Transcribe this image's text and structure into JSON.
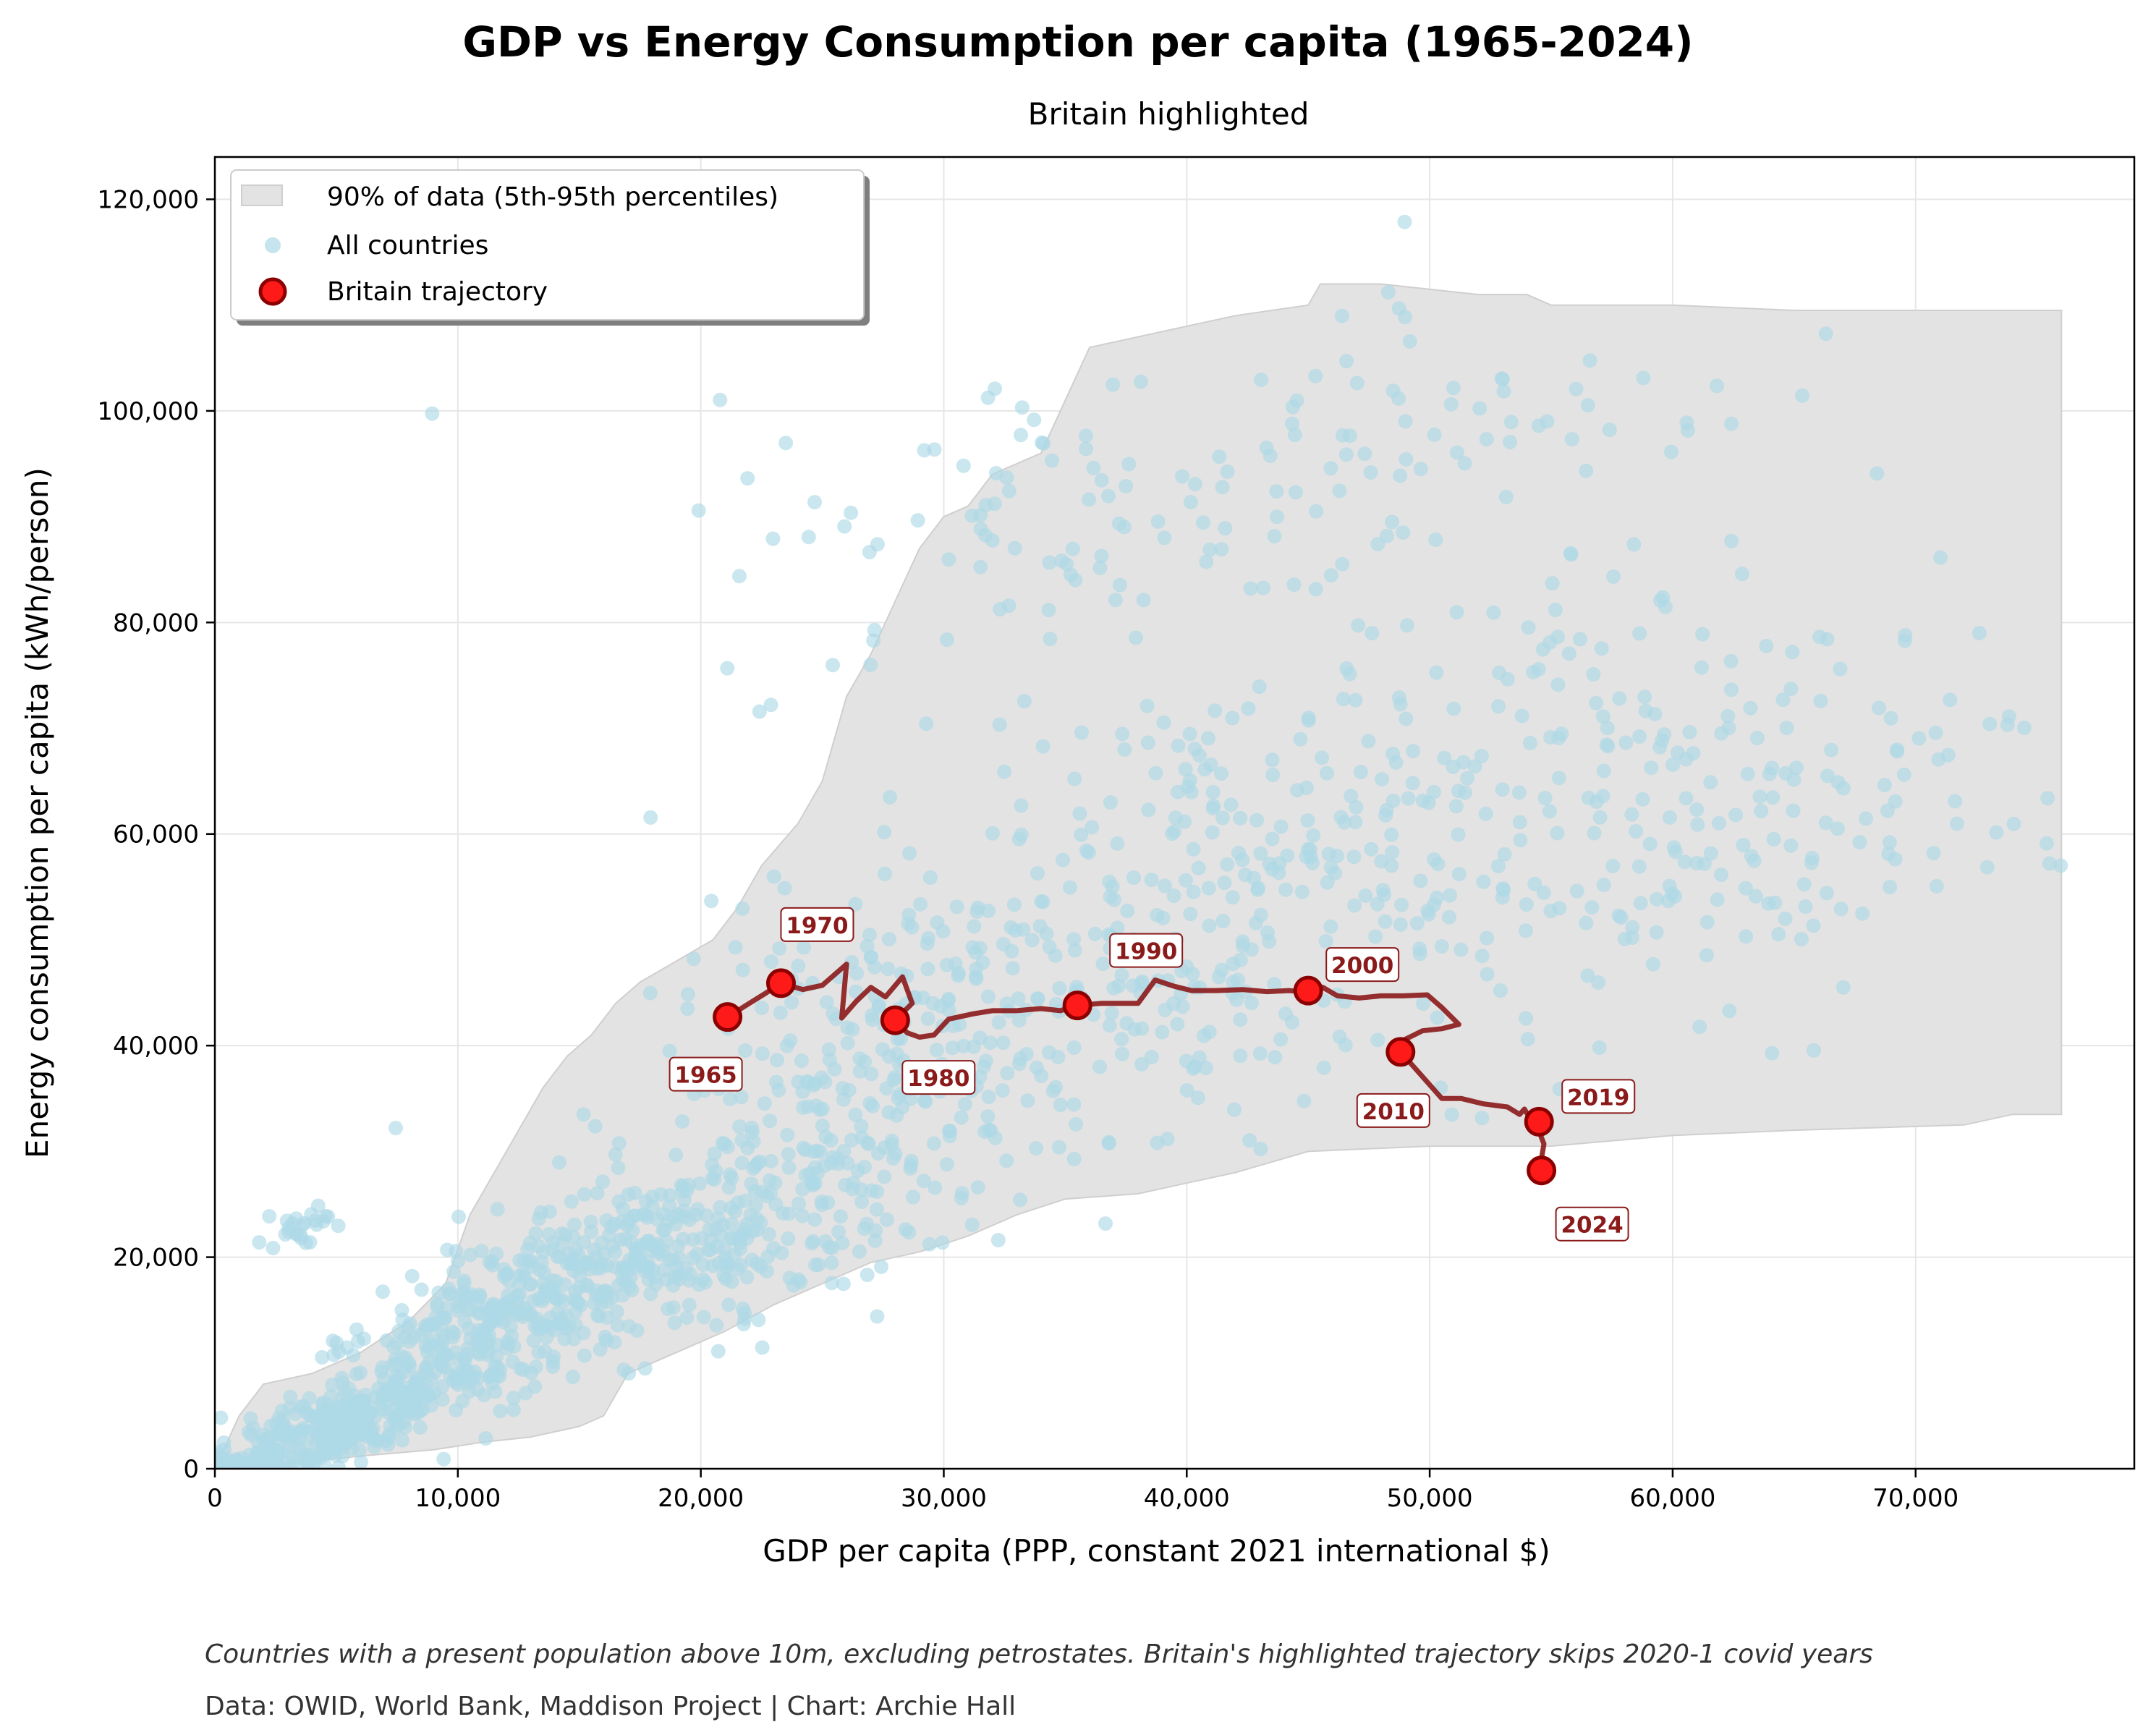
{
  "title": "GDP vs Energy Consumption per capita (1965-2024)",
  "subtitle": "Britain highlighted",
  "footnote": "Countries with a present population above 10m, excluding petrostates. Britain's highlighted trajectory skips 2020-1 covid years",
  "credit": "Data: OWID, World Bank, Maddison Project | Chart: Archie Hall",
  "colors": {
    "band_fill": "#e3e3e3",
    "band_edge": "#cfcfcf",
    "scatter": "#add8e6",
    "britain_line": "#8b1a1a",
    "britain_marker": "#ff1a1a",
    "britain_marker_edge": "#8b0000",
    "grid": "#e6e6e6"
  },
  "chart_data": {
    "type": "scatter",
    "xlabel": "GDP per capita (PPP, constant 2021 international $)",
    "ylabel": "Energy consumption per capita (kWh/person)",
    "xlim": [
      0,
      79000
    ],
    "ylim": [
      0,
      124000
    ],
    "x_ticks": [
      0,
      10000,
      20000,
      30000,
      40000,
      50000,
      60000,
      70000
    ],
    "x_tick_labels": [
      "0",
      "10,000",
      "20,000",
      "30,000",
      "40,000",
      "50,000",
      "60,000",
      "70,000"
    ],
    "y_ticks": [
      0,
      20000,
      40000,
      60000,
      80000,
      100000,
      120000
    ],
    "y_tick_labels": [
      "0",
      "20,000",
      "40,000",
      "60,000",
      "80,000",
      "100,000",
      "120,000"
    ],
    "grid": true,
    "legend_position": "top-left",
    "legend": [
      "90% of data (5th-95th percentiles)",
      "All countries",
      "Britain trajectory"
    ],
    "band_upper": [
      [
        0,
        0
      ],
      [
        1000,
        5000
      ],
      [
        2000,
        8000
      ],
      [
        4000,
        9000
      ],
      [
        6000,
        11000
      ],
      [
        8000,
        14000
      ],
      [
        9500,
        17500
      ],
      [
        10500,
        24000
      ],
      [
        11500,
        28000
      ],
      [
        12500,
        32000
      ],
      [
        13500,
        36000
      ],
      [
        14500,
        39000
      ],
      [
        15500,
        41000
      ],
      [
        16500,
        44000
      ],
      [
        17500,
        46000
      ],
      [
        19000,
        48000
      ],
      [
        20500,
        50000
      ],
      [
        21500,
        53000
      ],
      [
        22500,
        57000
      ],
      [
        24000,
        61000
      ],
      [
        25000,
        65000
      ],
      [
        26000,
        73000
      ],
      [
        27000,
        77000
      ],
      [
        28000,
        82000
      ],
      [
        29000,
        87000
      ],
      [
        30000,
        90000
      ],
      [
        31000,
        91000
      ],
      [
        32000,
        94000
      ],
      [
        33000,
        95000
      ],
      [
        34000,
        96000
      ],
      [
        35000,
        101000
      ],
      [
        36000,
        106000
      ],
      [
        38000,
        107000
      ],
      [
        40000,
        108000
      ],
      [
        42000,
        109000
      ],
      [
        45000,
        110000
      ],
      [
        45500,
        112000
      ],
      [
        48000,
        112000
      ],
      [
        52000,
        111000
      ],
      [
        54000,
        111000
      ],
      [
        55000,
        110000
      ],
      [
        60000,
        110000
      ],
      [
        65000,
        109500
      ],
      [
        70000,
        109500
      ],
      [
        76000,
        109500
      ]
    ],
    "band_lower": [
      [
        76000,
        33500
      ],
      [
        74000,
        33500
      ],
      [
        72000,
        32500
      ],
      [
        65000,
        32000
      ],
      [
        60000,
        31500
      ],
      [
        55000,
        30500
      ],
      [
        50000,
        30500
      ],
      [
        45000,
        30000
      ],
      [
        42000,
        28000
      ],
      [
        40000,
        27000
      ],
      [
        38000,
        26000
      ],
      [
        35000,
        25500
      ],
      [
        33000,
        24000
      ],
      [
        31000,
        22000
      ],
      [
        29000,
        20500
      ],
      [
        27000,
        19500
      ],
      [
        25000,
        17500
      ],
      [
        23000,
        15500
      ],
      [
        21000,
        13000
      ],
      [
        19000,
        11000
      ],
      [
        17000,
        9000
      ],
      [
        16000,
        5000
      ],
      [
        15000,
        4000
      ],
      [
        13000,
        3000
      ],
      [
        11000,
        2500
      ],
      [
        9000,
        1800
      ],
      [
        6000,
        1200
      ],
      [
        3000,
        500
      ],
      [
        1000,
        100
      ],
      [
        0,
        0
      ]
    ],
    "series": [
      {
        "name": "Britain trajectory",
        "x": [
          21100,
          22000,
          22700,
          23300,
          24200,
          25000,
          26000,
          25800,
          26400,
          27000,
          27600,
          28300,
          28700,
          28000,
          28500,
          29000,
          29600,
          30200,
          31200,
          32000,
          33000,
          34000,
          34800,
          35500,
          36500,
          37500,
          38000,
          38700,
          39500,
          40200,
          41200,
          42300,
          43300,
          44200,
          44800,
          45000,
          45600,
          46200,
          47100,
          48000,
          48900,
          49900,
          50500,
          51200,
          50500,
          49700,
          49000,
          48800,
          49500,
          50500,
          51300,
          52200,
          53200,
          53700,
          53900,
          54200,
          54400,
          54700,
          54600,
          54600
        ],
        "y": [
          42700,
          44000,
          45000,
          45900,
          45300,
          45700,
          47700,
          42600,
          44200,
          45500,
          44600,
          46500,
          44000,
          42400,
          41200,
          40800,
          41000,
          42500,
          43000,
          43300,
          43300,
          43500,
          43300,
          43800,
          44000,
          44000,
          44000,
          46200,
          45600,
          45200,
          45200,
          45300,
          45100,
          45200,
          45100,
          45700,
          45500,
          44700,
          44500,
          44700,
          44700,
          44800,
          43600,
          42000,
          41600,
          41400,
          40600,
          39400,
          37600,
          35000,
          35000,
          34500,
          34200,
          33500,
          34000,
          32800,
          32500,
          30700,
          29300,
          28200
        ],
        "labeled_points": [
          {
            "year": "1965",
            "x": 21100,
            "y": 42700
          },
          {
            "year": "1970",
            "x": 23300,
            "y": 45900
          },
          {
            "year": "1980",
            "x": 28000,
            "y": 42400
          },
          {
            "year": "1990",
            "x": 35500,
            "y": 43800
          },
          {
            "year": "2000",
            "x": 45000,
            "y": 45200
          },
          {
            "year": "2010",
            "x": 48800,
            "y": 39400
          },
          {
            "year": "2019",
            "x": 54500,
            "y": 32800
          },
          {
            "year": "2024",
            "x": 54600,
            "y": 28200
          }
        ]
      }
    ],
    "scatter_clusters": [
      {
        "cx": 5000,
        "cy": 4000,
        "sx": 3000,
        "sy": 3000,
        "slope": 0.9,
        "n": 320
      },
      {
        "cx": 12000,
        "cy": 14000,
        "sx": 4500,
        "sy": 6000,
        "slope": 1.0,
        "n": 360
      },
      {
        "cx": 20000,
        "cy": 22000,
        "sx": 5000,
        "sy": 8000,
        "slope": 0.8,
        "n": 320
      },
      {
        "cx": 30000,
        "cy": 40000,
        "sx": 6000,
        "sy": 13000,
        "slope": 0.4,
        "n": 280
      },
      {
        "cx": 42000,
        "cy": 55000,
        "sx": 8000,
        "sy": 18000,
        "slope": 0.3,
        "n": 260
      },
      {
        "cx": 55000,
        "cy": 62000,
        "sx": 8000,
        "sy": 20000,
        "slope": 0.0,
        "n": 180
      },
      {
        "cx": 36000,
        "cy": 90000,
        "sx": 8000,
        "sy": 12000,
        "slope": 0.2,
        "n": 100
      },
      {
        "cx": 52000,
        "cy": 100000,
        "sx": 6000,
        "sy": 12000,
        "slope": 0.0,
        "n": 60
      },
      {
        "cx": 66000,
        "cy": 66000,
        "sx": 6000,
        "sy": 14000,
        "slope": 0.0,
        "n": 70
      },
      {
        "cx": 3500,
        "cy": 23000,
        "sx": 600,
        "sy": 2000,
        "slope": 0.0,
        "n": 25
      }
    ]
  }
}
